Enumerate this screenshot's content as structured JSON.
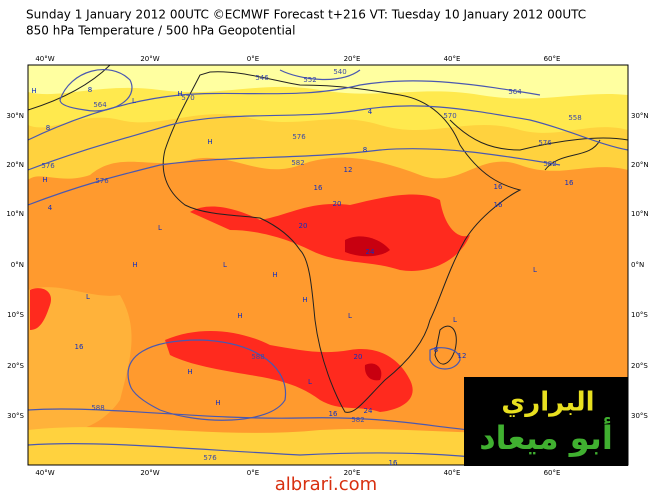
{
  "header": {
    "title": "Sunday 1 January 2012 00UTC ©ECMWF Forecast t+216 VT: Tuesday 10 January 2012 00UTC",
    "subtitle": "850 hPa Temperature / 500 hPa Geopotential"
  },
  "map": {
    "lon_labels": [
      "40°W",
      "20°W",
      "0°E",
      "20°E",
      "40°E",
      "60°E"
    ],
    "lat_labels": [
      "30°N",
      "20°N",
      "10°N",
      "0°N",
      "10°S",
      "20°S",
      "30°S"
    ],
    "geopotential_labels": [
      "570",
      "564",
      "546",
      "540",
      "552",
      "558",
      "576",
      "570",
      "564",
      "576",
      "582",
      "576",
      "582",
      "576",
      "588",
      "582",
      "588",
      "576"
    ],
    "temperature_labels": [
      "8",
      "4",
      "8",
      "8",
      "16",
      "12",
      "16",
      "16",
      "16",
      "20",
      "20",
      "24",
      "16",
      "20",
      "24",
      "16",
      "4",
      "8",
      "12",
      "16"
    ],
    "pressure_marks": [
      "H",
      "H",
      "H",
      "L",
      "H",
      "L",
      "L",
      "H",
      "L",
      "H",
      "L",
      "H",
      "L",
      "H",
      "L",
      "H",
      "H",
      "L"
    ]
  },
  "watermark": {
    "line1": "البراري",
    "line2": "أبو ميعاد",
    "site": "albrari.com"
  }
}
